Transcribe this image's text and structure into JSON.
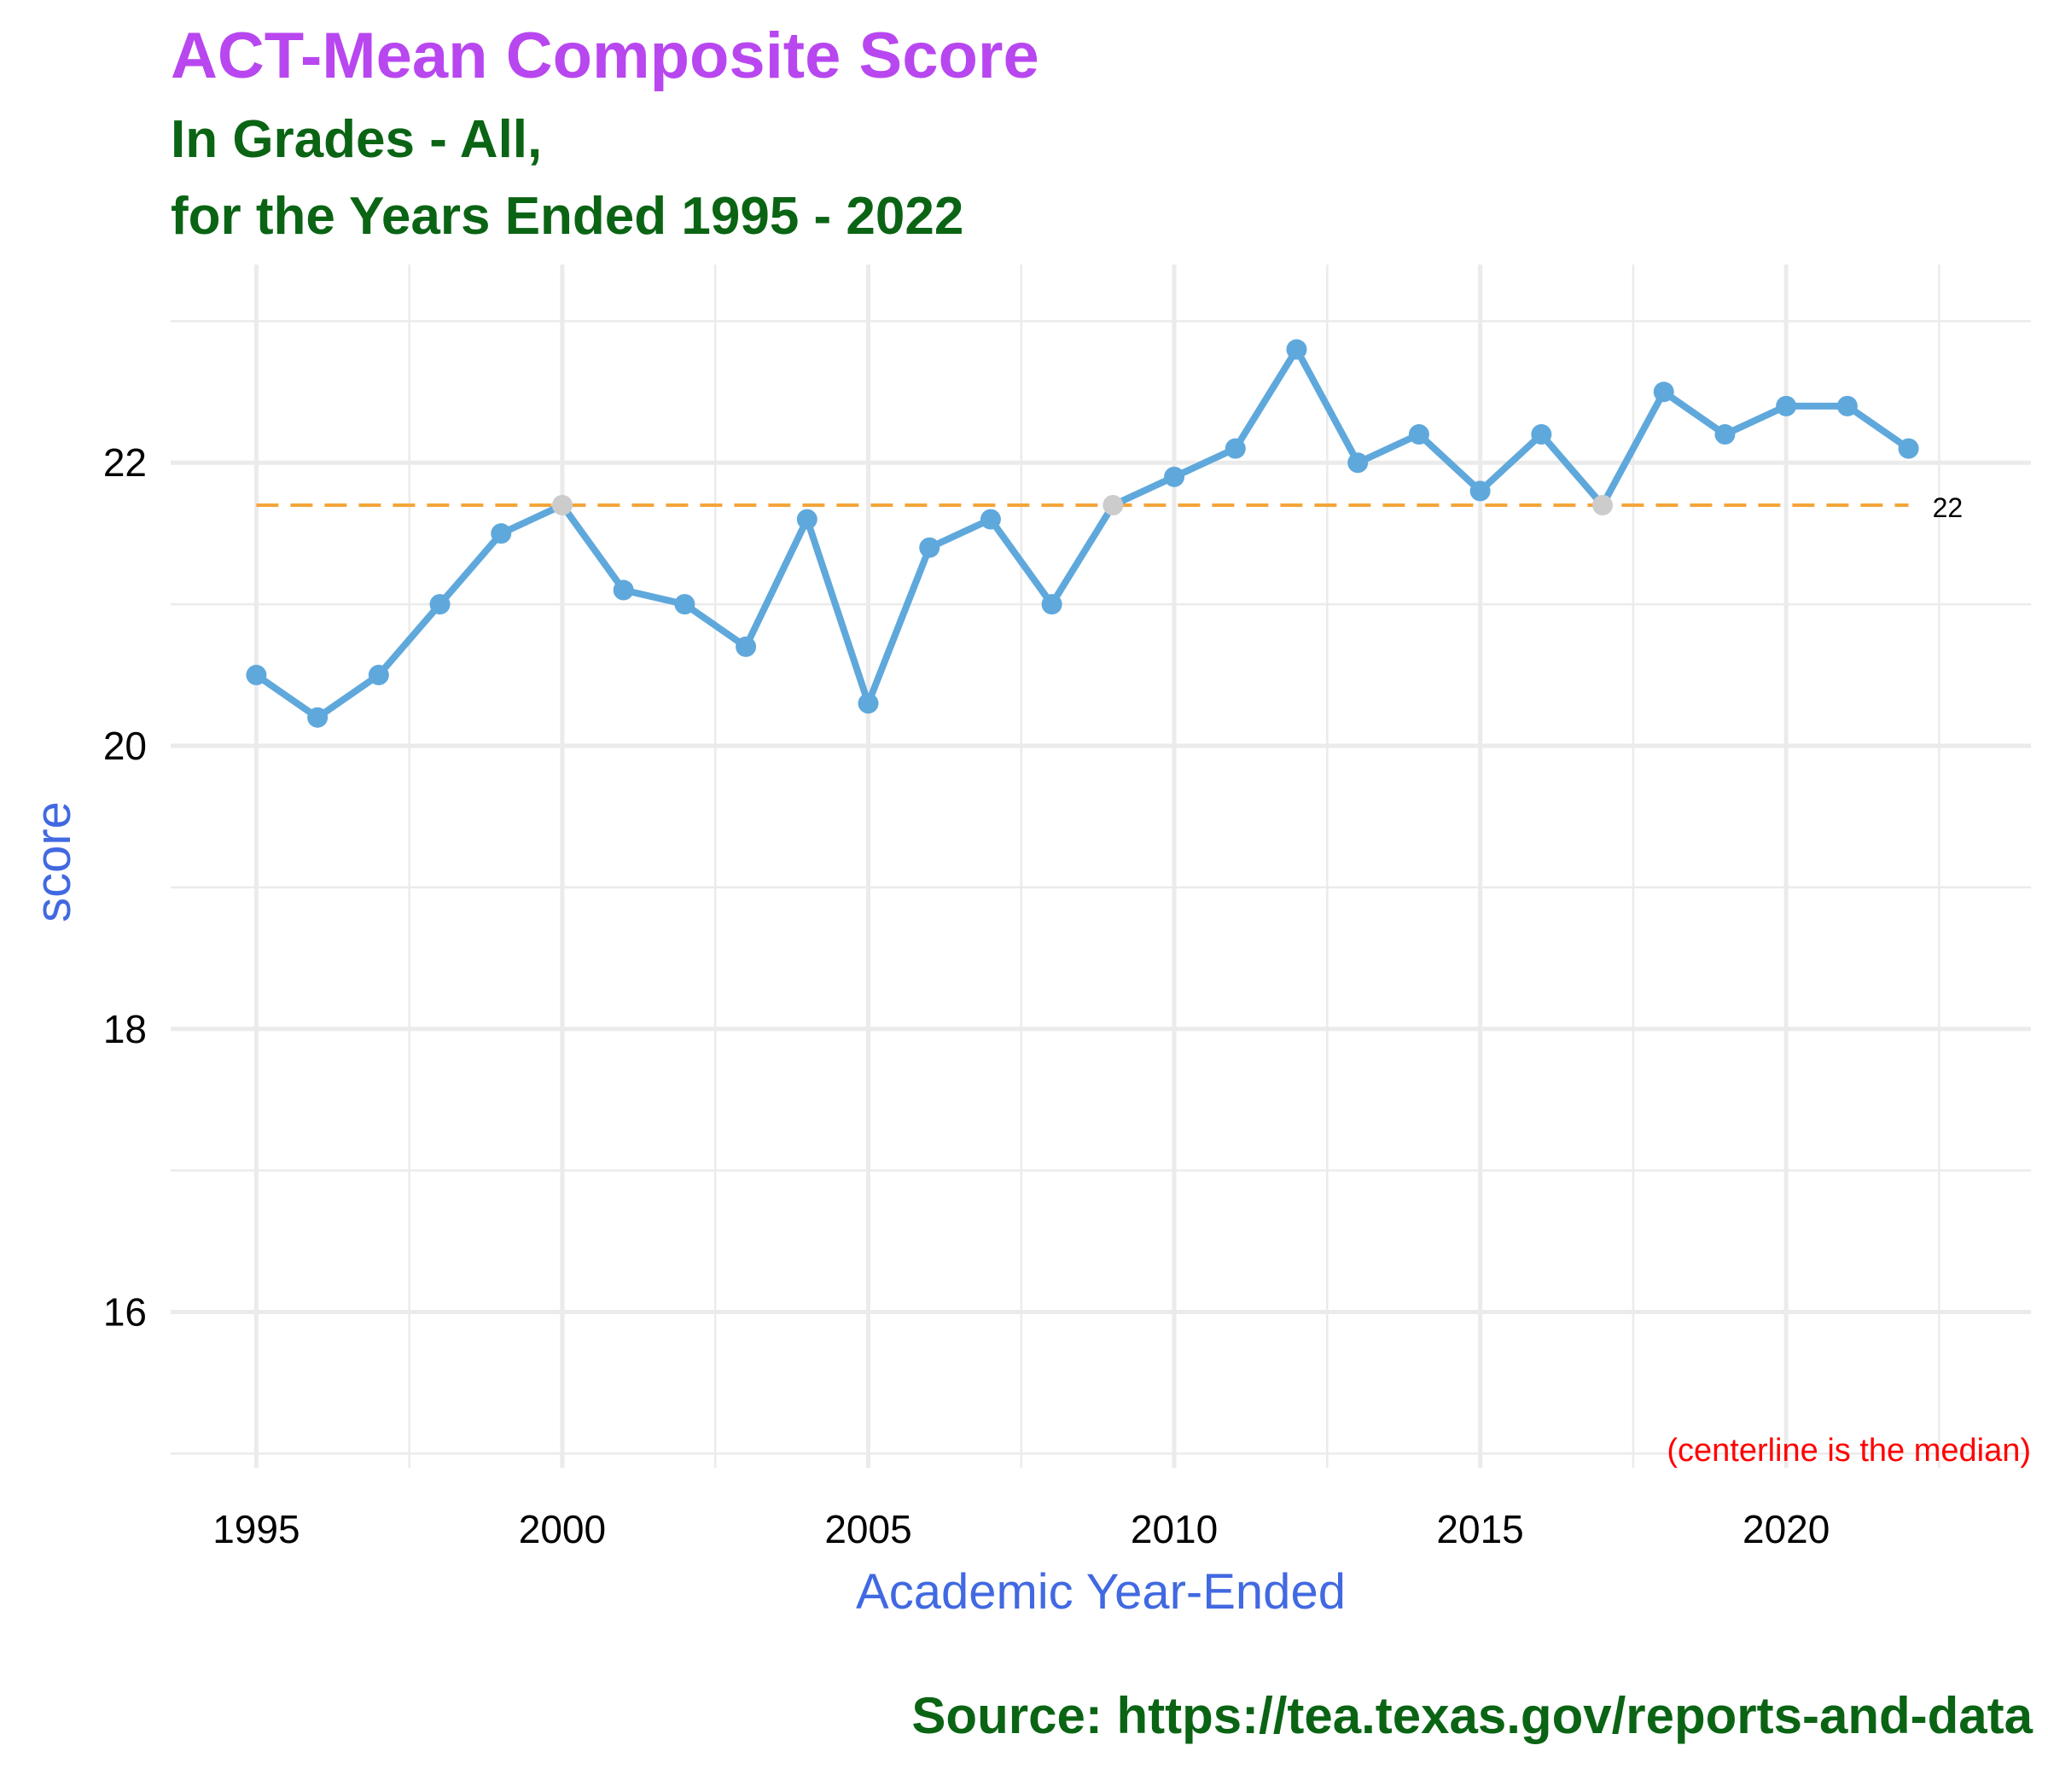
{
  "title": "ACT-Mean Composite Score",
  "subtitle_line1": "In Grades - All,",
  "subtitle_line2": "for the Years Ended 1995 - 2022",
  "caption": "Source:  https://tea.texas.gov/reports-and-data",
  "colors": {
    "title": "#b847f0",
    "subtitle": "#0a6414",
    "axis_title": "#4169e1",
    "line": "#5fa8dc",
    "point": "#5fa8dc",
    "point_on_median": "#cccccc",
    "median_line": "#f4a53a",
    "note": "#ff0000",
    "grid": "#ebebeb"
  },
  "chart_data": {
    "type": "line",
    "title": "ACT-Mean Composite Score",
    "xlabel": "Academic Year-Ended",
    "ylabel": "score",
    "xlim": [
      1993.6,
      2024.0
    ],
    "ylim": [
      14.9,
      23.4
    ],
    "x_ticks": [
      1995,
      2000,
      2005,
      2010,
      2015,
      2020
    ],
    "y_ticks": [
      16,
      18,
      20,
      22
    ],
    "grid": true,
    "series": [
      {
        "x": [
          1995,
          1996,
          1997,
          1998,
          1999,
          2000,
          2001,
          2002,
          2003,
          2004,
          2005,
          2006,
          2007,
          2008,
          2009,
          2010,
          2011,
          2012,
          2013,
          2014,
          2015,
          2016,
          2017,
          2018,
          2019,
          2020,
          2021,
          2022
        ],
        "values": [
          20.5,
          20.2,
          20.5,
          21.0,
          21.5,
          21.7,
          21.1,
          21.0,
          20.7,
          21.6,
          20.3,
          21.4,
          21.6,
          21.0,
          21.7,
          21.9,
          22.1,
          22.8,
          22.0,
          22.2,
          21.8,
          22.2,
          21.7,
          22.5,
          22.2,
          22.4,
          22.4,
          22.1
        ]
      }
    ],
    "median": 21.7,
    "median_label": "22",
    "note": "(centerline is the median)"
  }
}
